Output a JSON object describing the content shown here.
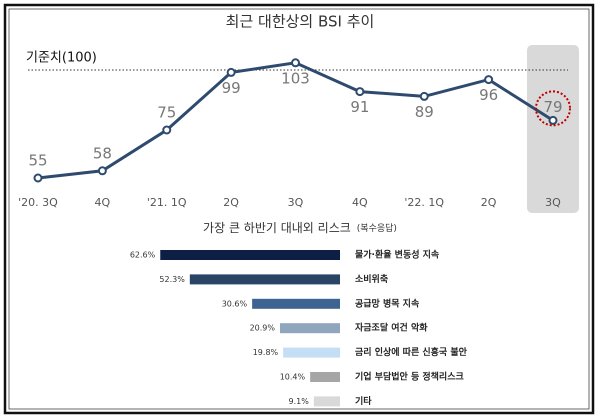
{
  "chart_data": [
    {
      "type": "line",
      "title": "최근 대한상의 BSI 추이",
      "categories": [
        "'20. 3Q",
        "4Q",
        "'21. 1Q",
        "2Q",
        "3Q",
        "4Q",
        "'22. 1Q",
        "2Q",
        "3Q"
      ],
      "values": [
        55,
        58,
        75,
        99,
        103,
        91,
        89,
        96,
        79
      ],
      "color": "#2e4a6e",
      "ylim": [
        50,
        110
      ],
      "reference": {
        "label": "기준치(100)",
        "value": 100
      }
    },
    {
      "type": "hbar",
      "title": "가장 큰 하반기 대내외 리스크",
      "subtitle": "(복수응답)",
      "categories": [
        "물가·환율 변동성 지속",
        "소비위축",
        "공급망 병목 지속",
        "자금조달 여건 악화",
        "금리 인상에 따른 신흥국 불안",
        "기업 부담법안 등 정책리스크",
        "기타"
      ],
      "values": [
        62.6,
        52.3,
        30.6,
        20.9,
        19.8,
        10.4,
        9.1
      ],
      "value_labels": [
        "62.6%",
        "52.3%",
        "30.6%",
        "20.9%",
        "19.8%",
        "10.4%",
        "9.1%"
      ],
      "colors": [
        "#0d1f45",
        "#2a4466",
        "#3d6491",
        "#8fa6bd",
        "#c4dff5",
        "#a6a6a6",
        "#d9d9d9"
      ],
      "xlim": [
        0,
        70
      ]
    }
  ]
}
